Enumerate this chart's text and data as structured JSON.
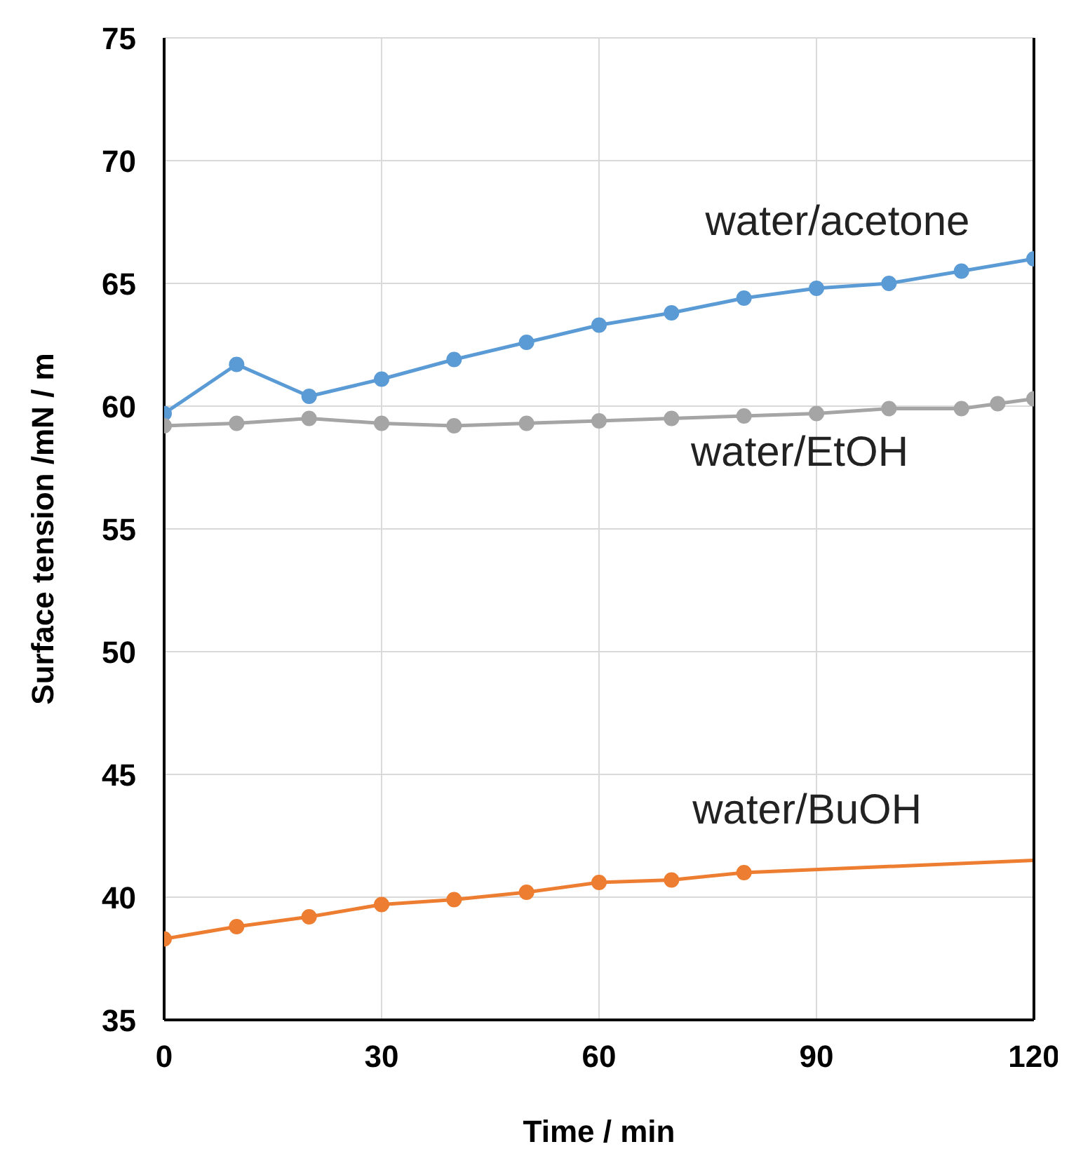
{
  "chart_data": {
    "type": "line",
    "xlabel": "Time / min",
    "ylabel": "Surface tension /mN / m",
    "xlim": [
      0,
      120
    ],
    "xticks": [
      0,
      30,
      60,
      90,
      120
    ],
    "ylim": [
      35,
      75
    ],
    "yticks": [
      35,
      40,
      45,
      50,
      55,
      60,
      65,
      70,
      75
    ],
    "grid": true,
    "marker": "circle",
    "line_style": "solid",
    "legend": false,
    "series": [
      {
        "name": "water/acetone",
        "color": "#5b9bd5",
        "x": [
          0,
          10,
          20,
          30,
          40,
          50,
          60,
          70,
          80,
          90,
          100,
          110,
          120
        ],
        "values": [
          59.7,
          61.7,
          60.4,
          61.1,
          61.9,
          62.6,
          63.3,
          63.8,
          64.4,
          64.8,
          65.0,
          65.5,
          66.0
        ]
      },
      {
        "name": "water/EtOH",
        "color": "#a5a5a5",
        "x": [
          0,
          10,
          20,
          30,
          40,
          50,
          60,
          70,
          80,
          90,
          100,
          110,
          115,
          120
        ],
        "values": [
          59.2,
          59.3,
          59.5,
          59.3,
          59.2,
          59.3,
          59.4,
          59.5,
          59.6,
          59.7,
          59.9,
          59.9,
          60.1,
          60.3
        ]
      },
      {
        "name": "water/BuOH",
        "color": "#ed7d31",
        "x": [
          0,
          10,
          20,
          30,
          40,
          50,
          60,
          70,
          80
        ],
        "values": [
          38.3,
          38.8,
          39.2,
          39.7,
          39.9,
          40.2,
          40.6,
          40.7,
          41.0
        ]
      },
      {
        "type": "line",
        "marker": "none",
        "color": "#ed7d31",
        "x": [
          80,
          120
        ],
        "values": [
          41.0,
          41.5
        ]
      }
    ]
  }
}
